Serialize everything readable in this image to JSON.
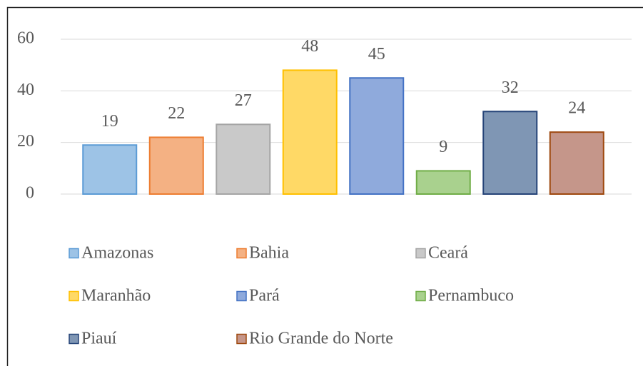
{
  "chart_data": {
    "type": "bar",
    "series": [
      {
        "name": "Amazonas",
        "color": "#9dc3e6",
        "edgecolor": "#5b9bd5",
        "values": [
          19
        ]
      },
      {
        "name": "Bahia",
        "color": "#f4b183",
        "edgecolor": "#ed7d31",
        "values": [
          22
        ]
      },
      {
        "name": "Ceará",
        "color": "#c9c9c9",
        "edgecolor": "#a5a5a5",
        "values": [
          27
        ]
      },
      {
        "name": "Maranhão",
        "color": "#ffd966",
        "edgecolor": "#ffc000",
        "values": [
          48
        ]
      },
      {
        "name": "Pará",
        "color": "#8faadc",
        "edgecolor": "#4472c4",
        "values": [
          45
        ]
      },
      {
        "name": "Pernambuco",
        "color": "#a9d18e",
        "edgecolor": "#70ad47",
        "values": [
          9
        ]
      },
      {
        "name": "Piauí",
        "color": "#7f96b4",
        "edgecolor": "#264478",
        "values": [
          32
        ]
      },
      {
        "name": "Rio Grande do Norte",
        "color": "#c5968a",
        "edgecolor": "#9e480e",
        "values": [
          24
        ]
      }
    ],
    "ylim": [
      0,
      60
    ],
    "yticks": [
      0,
      20,
      40,
      60
    ],
    "grid": true,
    "legend": "bottom"
  }
}
